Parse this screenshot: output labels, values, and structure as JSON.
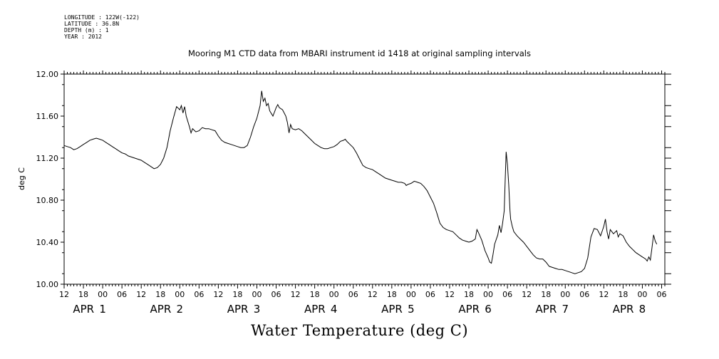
{
  "header": {
    "meta": [
      "LONGITUDE : 122W(-122)",
      "LATITUDE : 36.8N",
      "DEPTH (m) : 1",
      "YEAR : 2012"
    ]
  },
  "chart_data": {
    "type": "line",
    "title": "Mooring M1 CTD data from MBARI instrument id 1418 at original sampling intervals",
    "xlabel": "Water Temperature (deg C)",
    "ylabel": "deg C",
    "ylim": [
      10.0,
      12.0
    ],
    "yticks": [
      "10.00",
      "10.40",
      "10.80",
      "11.20",
      "11.60",
      "12.00"
    ],
    "xlim_hours": [
      12,
      199
    ],
    "hour_ticks": [
      "12",
      "18",
      "00",
      "06",
      "12",
      "18",
      "00",
      "06",
      "12",
      "18",
      "00",
      "06",
      "12",
      "18",
      "00",
      "06",
      "12",
      "18",
      "00",
      "06",
      "12",
      "18",
      "00",
      "06",
      "12",
      "18",
      "00",
      "06",
      "12",
      "18",
      "00",
      "06"
    ],
    "day_labels": [
      {
        "month": "APR",
        "day": "1",
        "hour": 24
      },
      {
        "month": "APR",
        "day": "2",
        "hour": 48
      },
      {
        "month": "APR",
        "day": "3",
        "hour": 72
      },
      {
        "month": "APR",
        "day": "4",
        "hour": 96
      },
      {
        "month": "APR",
        "day": "5",
        "hour": 120
      },
      {
        "month": "APR",
        "day": "6",
        "hour": 144
      },
      {
        "month": "APR",
        "day": "7",
        "hour": 168
      },
      {
        "month": "APR",
        "day": "8",
        "hour": 192
      }
    ],
    "series": [
      {
        "points": [
          [
            12,
            11.32
          ],
          [
            13,
            11.31
          ],
          [
            14,
            11.3
          ],
          [
            15,
            11.28
          ],
          [
            16,
            11.29
          ],
          [
            17,
            11.31
          ],
          [
            18,
            11.33
          ],
          [
            19,
            11.35
          ],
          [
            20,
            11.37
          ],
          [
            21,
            11.38
          ],
          [
            22,
            11.39
          ],
          [
            23,
            11.38
          ],
          [
            24,
            11.37
          ],
          [
            25,
            11.35
          ],
          [
            26,
            11.33
          ],
          [
            27,
            11.31
          ],
          [
            28,
            11.29
          ],
          [
            29,
            11.27
          ],
          [
            30,
            11.25
          ],
          [
            31,
            11.24
          ],
          [
            32,
            11.22
          ],
          [
            33,
            11.21
          ],
          [
            34,
            11.2
          ],
          [
            35,
            11.19
          ],
          [
            36,
            11.18
          ],
          [
            37,
            11.16
          ],
          [
            38,
            11.14
          ],
          [
            39,
            11.12
          ],
          [
            40,
            11.1
          ],
          [
            41,
            11.11
          ],
          [
            42,
            11.14
          ],
          [
            43,
            11.2
          ],
          [
            44,
            11.3
          ],
          [
            45,
            11.46
          ],
          [
            46,
            11.58
          ],
          [
            47,
            11.69
          ],
          [
            48,
            11.66
          ],
          [
            48.5,
            11.7
          ],
          [
            49,
            11.63
          ],
          [
            49.5,
            11.69
          ],
          [
            50,
            11.6
          ],
          [
            51,
            11.5
          ],
          [
            51.5,
            11.44
          ],
          [
            52,
            11.48
          ],
          [
            53,
            11.45
          ],
          [
            54,
            11.46
          ],
          [
            55,
            11.49
          ],
          [
            56,
            11.48
          ],
          [
            57,
            11.48
          ],
          [
            58,
            11.47
          ],
          [
            59,
            11.46
          ],
          [
            60,
            11.41
          ],
          [
            61,
            11.37
          ],
          [
            62,
            11.35
          ],
          [
            63,
            11.34
          ],
          [
            64,
            11.33
          ],
          [
            65,
            11.32
          ],
          [
            66,
            11.31
          ],
          [
            67,
            11.3
          ],
          [
            68,
            11.3
          ],
          [
            69,
            11.32
          ],
          [
            70,
            11.4
          ],
          [
            71,
            11.5
          ],
          [
            72,
            11.58
          ],
          [
            73,
            11.7
          ],
          [
            73.5,
            11.84
          ],
          [
            74,
            11.74
          ],
          [
            74.5,
            11.77
          ],
          [
            75,
            11.7
          ],
          [
            75.5,
            11.72
          ],
          [
            76,
            11.65
          ],
          [
            77,
            11.6
          ],
          [
            78,
            11.68
          ],
          [
            78.5,
            11.71
          ],
          [
            79,
            11.68
          ],
          [
            80,
            11.66
          ],
          [
            81,
            11.6
          ],
          [
            81.5,
            11.54
          ],
          [
            82,
            11.44
          ],
          [
            82.5,
            11.52
          ],
          [
            83,
            11.48
          ],
          [
            84,
            11.47
          ],
          [
            85,
            11.48
          ],
          [
            86,
            11.46
          ],
          [
            87,
            11.43
          ],
          [
            88,
            11.4
          ],
          [
            89,
            11.37
          ],
          [
            90,
            11.34
          ],
          [
            91,
            11.32
          ],
          [
            92,
            11.3
          ],
          [
            93,
            11.29
          ],
          [
            94,
            11.29
          ],
          [
            95,
            11.3
          ],
          [
            96,
            11.31
          ],
          [
            97,
            11.33
          ],
          [
            98,
            11.36
          ],
          [
            99,
            11.37
          ],
          [
            99.5,
            11.38
          ],
          [
            100,
            11.36
          ],
          [
            101,
            11.33
          ],
          [
            102,
            11.3
          ],
          [
            103,
            11.25
          ],
          [
            104,
            11.19
          ],
          [
            105,
            11.13
          ],
          [
            106,
            11.11
          ],
          [
            107,
            11.1
          ],
          [
            108,
            11.09
          ],
          [
            109,
            11.07
          ],
          [
            110,
            11.05
          ],
          [
            111,
            11.03
          ],
          [
            112,
            11.01
          ],
          [
            113,
            11.0
          ],
          [
            114,
            10.99
          ],
          [
            115,
            10.98
          ],
          [
            116,
            10.97
          ],
          [
            117,
            10.97
          ],
          [
            118,
            10.96
          ],
          [
            118.5,
            10.94
          ],
          [
            119,
            10.95
          ],
          [
            120,
            10.96
          ],
          [
            121,
            10.98
          ],
          [
            122,
            10.97
          ],
          [
            123,
            10.96
          ],
          [
            124,
            10.93
          ],
          [
            125,
            10.89
          ],
          [
            126,
            10.83
          ],
          [
            127,
            10.77
          ],
          [
            128,
            10.68
          ],
          [
            129,
            10.58
          ],
          [
            130,
            10.54
          ],
          [
            131,
            10.52
          ],
          [
            132,
            10.51
          ],
          [
            133,
            10.5
          ],
          [
            134,
            10.47
          ],
          [
            135,
            10.44
          ],
          [
            136,
            10.42
          ],
          [
            137,
            10.41
          ],
          [
            138,
            10.4
          ],
          [
            139,
            10.41
          ],
          [
            140,
            10.43
          ],
          [
            140.5,
            10.52
          ],
          [
            141,
            10.49
          ],
          [
            142,
            10.42
          ],
          [
            142.5,
            10.37
          ],
          [
            143,
            10.32
          ],
          [
            144,
            10.25
          ],
          [
            144.5,
            10.21
          ],
          [
            145,
            10.2
          ],
          [
            145.5,
            10.28
          ],
          [
            146,
            10.38
          ],
          [
            147,
            10.47
          ],
          [
            147.5,
            10.56
          ],
          [
            148,
            10.49
          ],
          [
            148.5,
            10.58
          ],
          [
            149,
            10.7
          ],
          [
            149.3,
            11.0
          ],
          [
            149.6,
            11.26
          ],
          [
            150,
            11.14
          ],
          [
            150.4,
            10.95
          ],
          [
            150.8,
            10.7
          ],
          [
            151,
            10.62
          ],
          [
            151.5,
            10.55
          ],
          [
            152,
            10.5
          ],
          [
            153,
            10.46
          ],
          [
            154,
            10.43
          ],
          [
            155,
            10.4
          ],
          [
            156,
            10.36
          ],
          [
            157,
            10.32
          ],
          [
            158,
            10.28
          ],
          [
            159,
            10.25
          ],
          [
            160,
            10.24
          ],
          [
            161,
            10.24
          ],
          [
            162,
            10.21
          ],
          [
            163,
            10.17
          ],
          [
            164,
            10.16
          ],
          [
            165,
            10.15
          ],
          [
            166,
            10.14
          ],
          [
            167,
            10.14
          ],
          [
            168,
            10.13
          ],
          [
            169,
            10.12
          ],
          [
            170,
            10.11
          ],
          [
            171,
            10.1
          ],
          [
            172,
            10.11
          ],
          [
            173,
            10.12
          ],
          [
            174,
            10.15
          ],
          [
            175,
            10.25
          ],
          [
            176,
            10.45
          ],
          [
            177,
            10.53
          ],
          [
            178,
            10.52
          ],
          [
            179,
            10.46
          ],
          [
            180,
            10.55
          ],
          [
            180.5,
            10.62
          ],
          [
            181,
            10.5
          ],
          [
            181.5,
            10.43
          ],
          [
            182,
            10.52
          ],
          [
            183,
            10.48
          ],
          [
            184,
            10.51
          ],
          [
            184.5,
            10.45
          ],
          [
            185,
            10.48
          ],
          [
            186,
            10.46
          ],
          [
            187,
            10.4
          ],
          [
            188,
            10.36
          ],
          [
            189,
            10.33
          ],
          [
            190,
            10.3
          ],
          [
            191,
            10.28
          ],
          [
            192,
            10.26
          ],
          [
            193,
            10.24
          ],
          [
            193.5,
            10.22
          ],
          [
            194,
            10.26
          ],
          [
            194.5,
            10.23
          ],
          [
            195,
            10.35
          ],
          [
            195.5,
            10.47
          ],
          [
            196,
            10.41
          ],
          [
            196.5,
            10.38
          ]
        ]
      }
    ]
  }
}
